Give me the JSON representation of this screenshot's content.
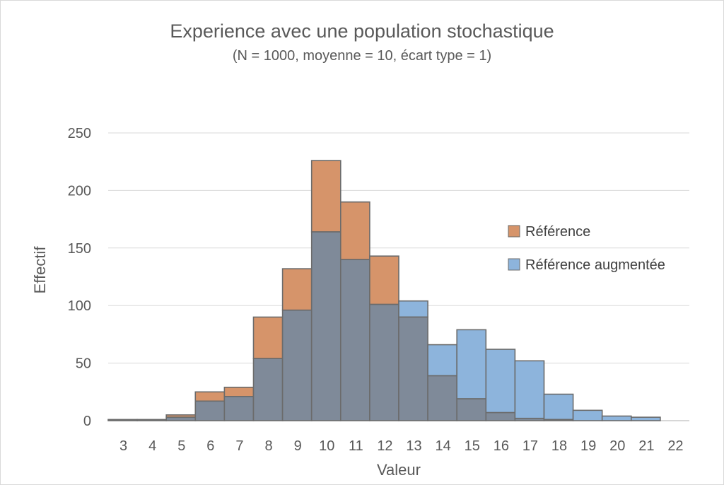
{
  "chart_data": {
    "type": "bar",
    "title": "Experience avec une population stochastique",
    "subtitle": "(N = 1000, moyenne = 10, écart type = 1)",
    "xlabel": "Valeur",
    "ylabel": "Effectif",
    "ylim": [
      0,
      250
    ],
    "yticks": [
      0,
      50,
      100,
      150,
      200,
      250
    ],
    "grid": true,
    "legend_position": "right",
    "categories": [
      "3",
      "4",
      "5",
      "6",
      "7",
      "8",
      "9",
      "10",
      "11",
      "12",
      "13",
      "14",
      "15",
      "16",
      "17",
      "18",
      "19",
      "20",
      "21",
      "22"
    ],
    "overlap_color": "#7f8a99",
    "series": [
      {
        "name": "Référence",
        "color": "#d6946a",
        "values": [
          1,
          1,
          5,
          25,
          29,
          90,
          132,
          226,
          190,
          143,
          90,
          39,
          19,
          7,
          2,
          1,
          0,
          0,
          0,
          0
        ]
      },
      {
        "name": "Référence augmentée",
        "color": "#8db4dc",
        "values": [
          1,
          1,
          3,
          17,
          21,
          54,
          96,
          164,
          140,
          101,
          104,
          66,
          79,
          62,
          52,
          23,
          9,
          4,
          3,
          0
        ]
      }
    ]
  }
}
